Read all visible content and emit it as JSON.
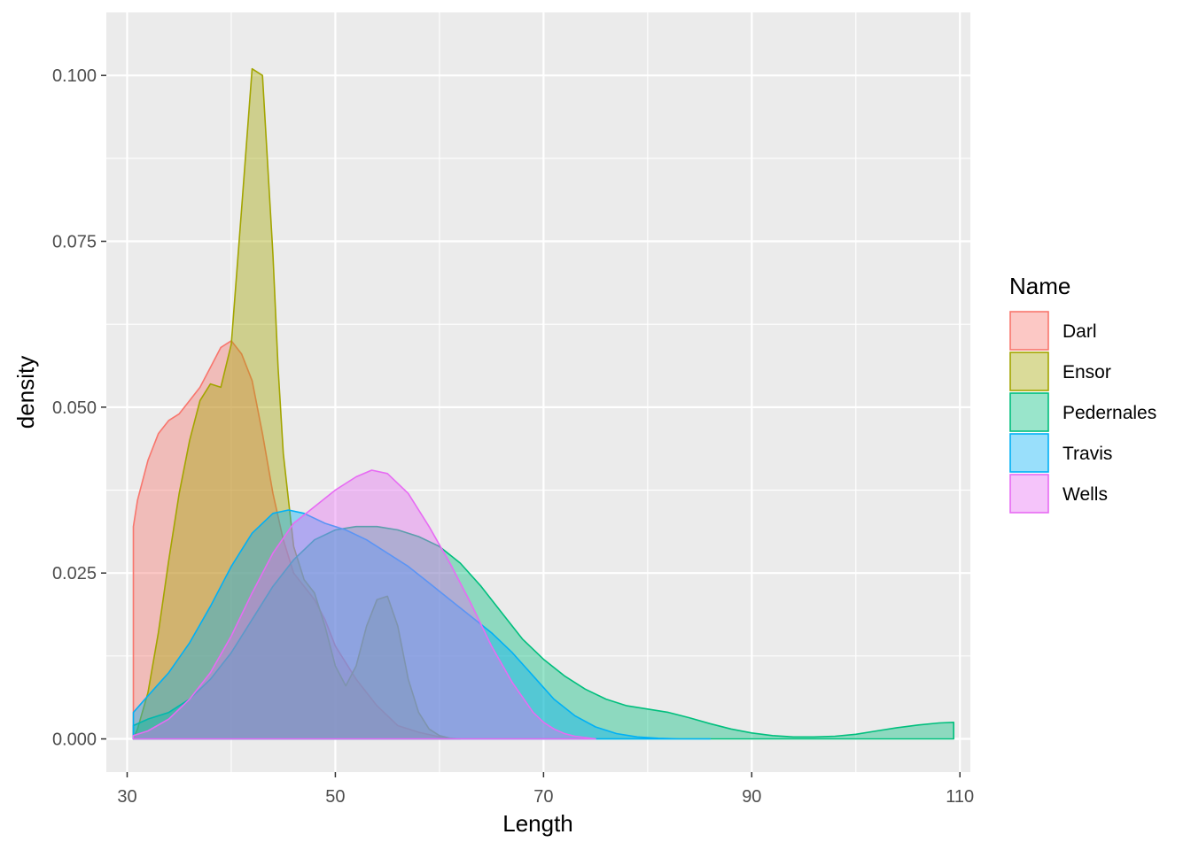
{
  "chart_data": {
    "type": "area",
    "subtype": "density",
    "xlabel": "Length",
    "ylabel": "density",
    "xlim": [
      28,
      111
    ],
    "ylim": [
      -0.005,
      0.1095
    ],
    "x_ticks": [
      "30",
      "50",
      "70",
      "90",
      "110"
    ],
    "y_ticks": [
      "0.000",
      "0.025",
      "0.050",
      "0.075",
      "0.100"
    ],
    "grid": true,
    "panel_background": "#ebebeb",
    "legend": {
      "title": "Name",
      "position": "right"
    },
    "series": [
      {
        "name": "Darl",
        "color": "#F8766D",
        "x": [
          30.6,
          31,
          32,
          33,
          34,
          35,
          36,
          37,
          38,
          39,
          40,
          41,
          42,
          43,
          44,
          45,
          46,
          47,
          48,
          49,
          50,
          52,
          54,
          56,
          58,
          60,
          61
        ],
        "y": [
          0.032,
          0.036,
          0.042,
          0.046,
          0.048,
          0.049,
          0.051,
          0.053,
          0.056,
          0.059,
          0.06,
          0.058,
          0.054,
          0.046,
          0.037,
          0.03,
          0.025,
          0.023,
          0.021,
          0.018,
          0.014,
          0.009,
          0.005,
          0.002,
          0.001,
          0.0003,
          0.0
        ]
      },
      {
        "name": "Ensor",
        "color": "#A3A500",
        "x": [
          30.6,
          31,
          32,
          33,
          34,
          35,
          36,
          37,
          38,
          39,
          40,
          41,
          42,
          43,
          44,
          44.5,
          45,
          46,
          47,
          48,
          49,
          50,
          51,
          52,
          53,
          54,
          55,
          56,
          57,
          58,
          59,
          60,
          61,
          62
        ],
        "y": [
          0.0,
          0.0015,
          0.007,
          0.016,
          0.027,
          0.037,
          0.045,
          0.051,
          0.0535,
          0.053,
          0.0595,
          0.08,
          0.101,
          0.1,
          0.073,
          0.056,
          0.043,
          0.029,
          0.024,
          0.022,
          0.017,
          0.011,
          0.008,
          0.011,
          0.017,
          0.021,
          0.0215,
          0.017,
          0.009,
          0.004,
          0.0015,
          0.0005,
          0.0001,
          0.0
        ]
      },
      {
        "name": "Pedernales",
        "color": "#00BF7D",
        "x": [
          30.6,
          32,
          34,
          36,
          38,
          40,
          42,
          44,
          46,
          48,
          50,
          52,
          54,
          56,
          58,
          60,
          62,
          64,
          66,
          68,
          70,
          72,
          74,
          76,
          78,
          80,
          82,
          84,
          86,
          88,
          90,
          92,
          94,
          96,
          98,
          100,
          102,
          104,
          106,
          108,
          109.4
        ],
        "y": [
          0.002,
          0.003,
          0.004,
          0.006,
          0.009,
          0.013,
          0.018,
          0.023,
          0.027,
          0.03,
          0.0315,
          0.032,
          0.032,
          0.0315,
          0.0305,
          0.029,
          0.0265,
          0.023,
          0.019,
          0.015,
          0.012,
          0.0095,
          0.0075,
          0.006,
          0.005,
          0.0045,
          0.004,
          0.0032,
          0.0023,
          0.0015,
          0.0009,
          0.0005,
          0.0003,
          0.0003,
          0.0004,
          0.0007,
          0.0012,
          0.0017,
          0.0021,
          0.0024,
          0.0025
        ]
      },
      {
        "name": "Travis",
        "color": "#00B0F6",
        "x": [
          30.6,
          32,
          34,
          36,
          38,
          40,
          42,
          44,
          45.5,
          47,
          49,
          51,
          53,
          55,
          57,
          59,
          61,
          63,
          65,
          67,
          69,
          71,
          73,
          75,
          77,
          79,
          81,
          83,
          85,
          86
        ],
        "y": [
          0.004,
          0.0065,
          0.01,
          0.0145,
          0.02,
          0.026,
          0.031,
          0.034,
          0.0345,
          0.034,
          0.0325,
          0.0315,
          0.03,
          0.028,
          0.026,
          0.0235,
          0.021,
          0.0185,
          0.016,
          0.013,
          0.0095,
          0.006,
          0.0035,
          0.0018,
          0.0008,
          0.0003,
          0.0001,
          0.0,
          0.0,
          0.0
        ]
      },
      {
        "name": "Wells",
        "color": "#E76BF3",
        "x": [
          30.6,
          32,
          34,
          36,
          38,
          40,
          42,
          44,
          46,
          48,
          50,
          52,
          53.5,
          55,
          57,
          59,
          61,
          63,
          65,
          67,
          69,
          70,
          71,
          72,
          73,
          74,
          75
        ],
        "y": [
          0.0005,
          0.0012,
          0.003,
          0.006,
          0.01,
          0.0155,
          0.022,
          0.028,
          0.0325,
          0.035,
          0.0375,
          0.0395,
          0.0405,
          0.04,
          0.037,
          0.032,
          0.0265,
          0.0205,
          0.014,
          0.0085,
          0.004,
          0.0025,
          0.0015,
          0.0008,
          0.0004,
          0.0002,
          0.0
        ]
      }
    ]
  }
}
